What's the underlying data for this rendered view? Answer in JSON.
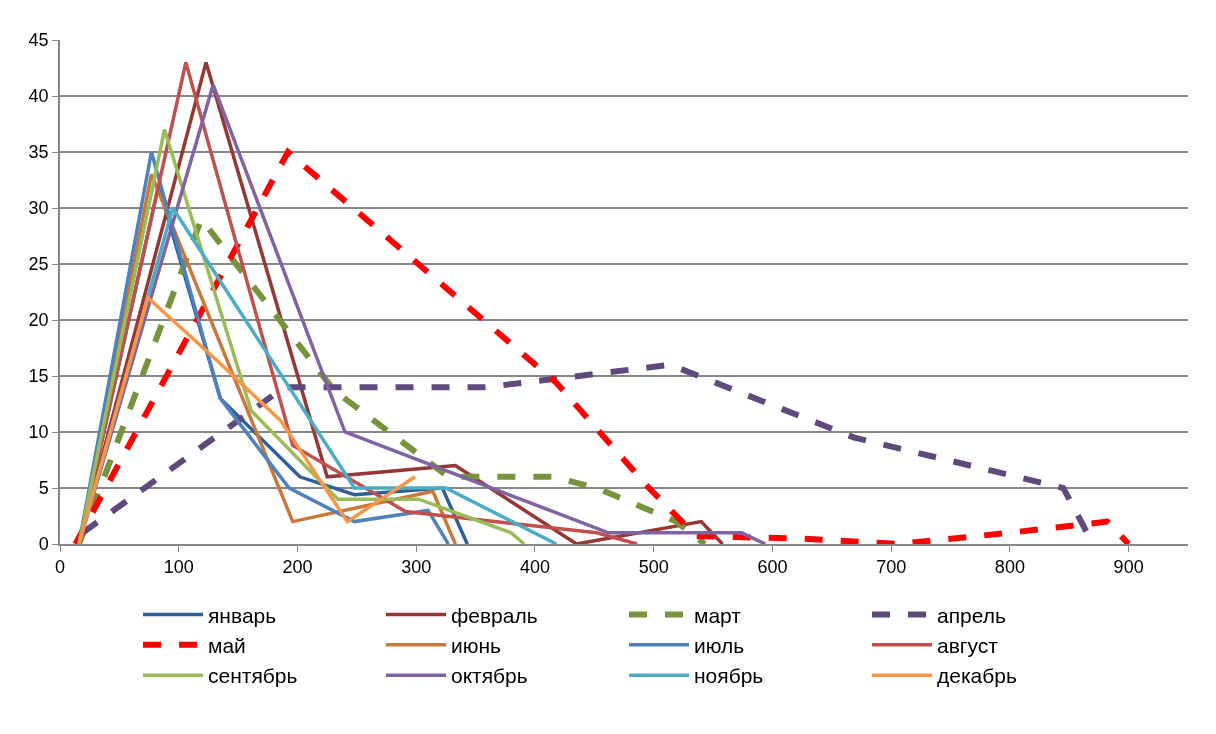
{
  "chart_data": {
    "type": "line",
    "xlim": [
      0,
      950
    ],
    "xticks": [
      0,
      100,
      200,
      300,
      400,
      500,
      600,
      700,
      800,
      900
    ],
    "ylim": [
      0,
      45
    ],
    "yticks": [
      0,
      5,
      10,
      15,
      20,
      25,
      30,
      35,
      40,
      45
    ],
    "grid": "y",
    "legend": "bottom",
    "marker": "none",
    "series": [
      {
        "name": "январь",
        "color": "#2f5f98",
        "line_style": "solid",
        "x": [
          16,
          83,
          135,
          202,
          248,
          322,
          343
        ],
        "values": [
          0,
          32,
          13,
          6,
          4.4,
          5,
          0
        ]
      },
      {
        "name": "февраль",
        "color": "#953735",
        "line_style": "solid",
        "x": [
          16,
          123,
          225,
          333,
          435,
          540,
          558
        ],
        "values": [
          0,
          43,
          6,
          7,
          0,
          2,
          0
        ]
      },
      {
        "name": "март",
        "color": "#77933c",
        "line_style": "dashed",
        "x": [
          16,
          119,
          231,
          327,
          415,
          452,
          519,
          543
        ],
        "values": [
          0,
          29,
          13.7,
          6,
          6,
          5,
          2,
          0
        ]
      },
      {
        "name": "апрель",
        "color": "#604a7b",
        "line_style": "dashed",
        "x": [
          19,
          189,
          359,
          514,
          669,
          845,
          870
        ],
        "values": [
          1,
          14,
          14,
          16,
          9.5,
          5,
          0
        ]
      },
      {
        "name": "май",
        "color": "#ff0000",
        "line_style": "dashed",
        "x": [
          13,
          192,
          418,
          496,
          536,
          620,
          706,
          800,
          882,
          900
        ],
        "values": [
          0,
          35,
          14.4,
          5,
          0.7,
          0.5,
          0,
          1,
          2,
          0
        ]
      },
      {
        "name": "июнь",
        "color": "#c9773a",
        "line_style": "solid",
        "x": [
          16,
          77,
          196,
          314,
          333
        ],
        "values": [
          0,
          33,
          2,
          4.7,
          0
        ]
      },
      {
        "name": "июль",
        "color": "#4f81bd",
        "line_style": "solid",
        "x": [
          16,
          77,
          135,
          193,
          248,
          310,
          327
        ],
        "values": [
          0,
          35,
          13,
          5,
          2,
          3,
          0
        ]
      },
      {
        "name": "август",
        "color": "#c0504d",
        "line_style": "solid",
        "x": [
          16,
          106,
          196,
          291,
          452,
          486
        ],
        "values": [
          0,
          43,
          8.8,
          2.9,
          1,
          0
        ]
      },
      {
        "name": "сентябрь",
        "color": "#9bbb59",
        "line_style": "solid",
        "x": [
          16,
          88,
          161,
          234,
          302,
          380,
          391
        ],
        "values": [
          0,
          37,
          11.9,
          4,
          4,
          1,
          0
        ]
      },
      {
        "name": "октябрь",
        "color": "#8064a2",
        "line_style": "solid",
        "x": [
          16,
          129,
          240,
          462,
          574,
          594
        ],
        "values": [
          0,
          41,
          10,
          1,
          1,
          0
        ]
      },
      {
        "name": "ноябрь",
        "color": "#4bacc6",
        "line_style": "solid",
        "x": [
          16,
          95,
          248,
          325,
          418
        ],
        "values": [
          0,
          30,
          5,
          5,
          0
        ]
      },
      {
        "name": "декабрь",
        "color": "#f79646",
        "line_style": "solid",
        "x": [
          16,
          74,
          132,
          186,
          242,
          299
        ],
        "values": [
          0,
          22,
          16.4,
          11,
          2,
          6
        ]
      }
    ]
  }
}
